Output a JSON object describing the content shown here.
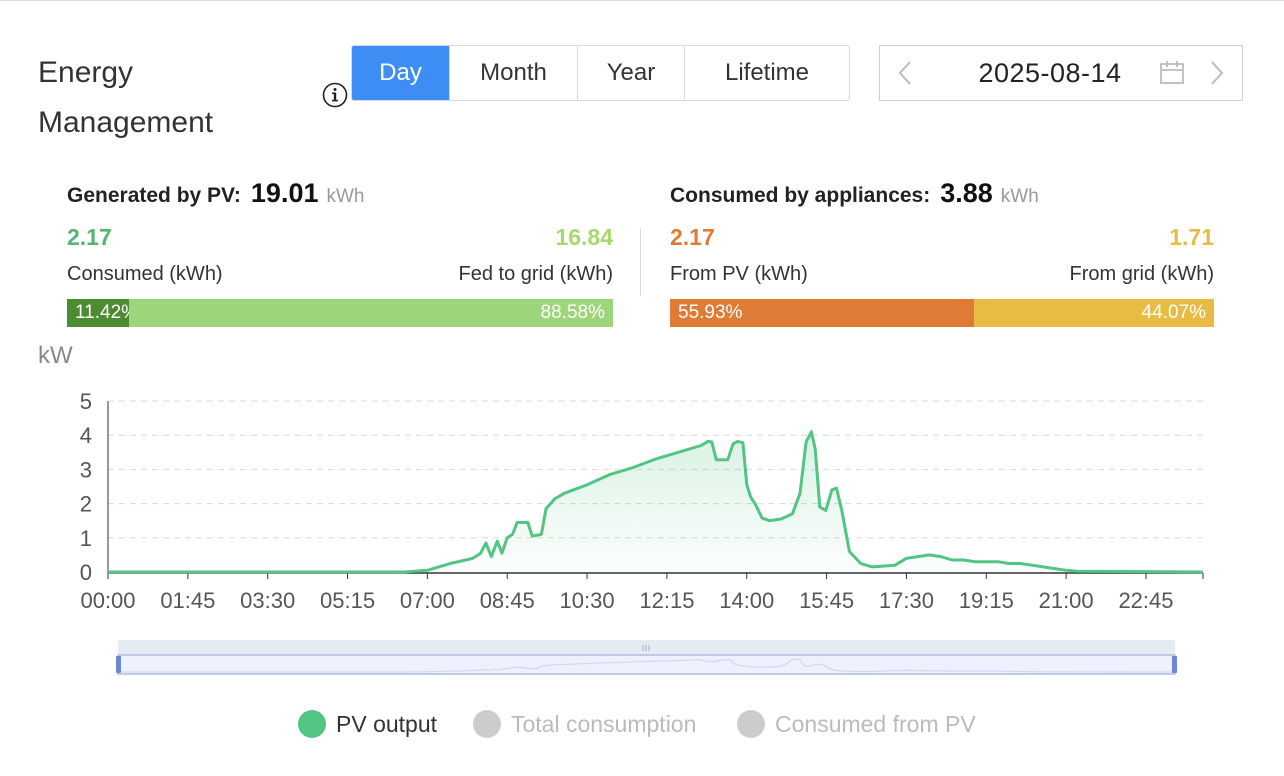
{
  "header": {
    "title_line1": "Energy",
    "title_line2": "Management"
  },
  "tabs": [
    {
      "label": "Day",
      "active": true
    },
    {
      "label": "Month",
      "active": false
    },
    {
      "label": "Year",
      "active": false
    },
    {
      "label": "Lifetime",
      "active": false
    }
  ],
  "date_picker": {
    "value": "2025-08-14",
    "prev_icon": "chevron-left-icon",
    "next_icon": "chevron-right-icon",
    "calendar_icon": "calendar-icon"
  },
  "generated": {
    "label": "Generated by PV:",
    "total": "19.01",
    "unit": "kWh",
    "left_value": "2.17",
    "right_value": "16.84",
    "left_label": "Consumed (kWh)",
    "right_label": "Fed to grid (kWh)",
    "left_pct": "11.42%",
    "right_pct": "88.58%",
    "left_fraction": 0.1142,
    "colors": {
      "left_value": "#55b472",
      "right_value": "#a6d96a",
      "left_bar": "#4d8b30",
      "right_bar": "#9dd67a"
    }
  },
  "consumed": {
    "label": "Consumed by appliances:",
    "total": "3.88",
    "unit": "kWh",
    "left_value": "2.17",
    "right_value": "1.71",
    "left_label": "From PV (kWh)",
    "right_label": "From grid (kWh)",
    "left_pct": "55.93%",
    "right_pct": "44.07%",
    "left_fraction": 0.5593,
    "colors": {
      "left_value": "#e07b35",
      "right_value": "#e8bb3c",
      "left_bar": "#e07b35",
      "right_bar": "#e8bb42"
    }
  },
  "chart_data": {
    "type": "area",
    "ylabel": "kW",
    "ylim": [
      0,
      5
    ],
    "yticks": [
      "0",
      "1",
      "2",
      "3",
      "4",
      "5"
    ],
    "xticks": [
      "00:00",
      "01:45",
      "03:30",
      "05:15",
      "07:00",
      "08:45",
      "10:30",
      "12:15",
      "14:00",
      "15:45",
      "17:30",
      "19:15",
      "21:00",
      "22:45"
    ],
    "x_range_hours": [
      0,
      24
    ],
    "grid": "horizontal dashed",
    "series": [
      {
        "name": "PV output",
        "color": "#52c483",
        "points": [
          [
            "00:00",
            0
          ],
          [
            "06:30",
            0
          ],
          [
            "07:00",
            0.05
          ],
          [
            "07:30",
            0.25
          ],
          [
            "08:00",
            0.4
          ],
          [
            "08:10",
            0.55
          ],
          [
            "08:17",
            0.85
          ],
          [
            "08:24",
            0.45
          ],
          [
            "08:32",
            0.9
          ],
          [
            "08:38",
            0.55
          ],
          [
            "08:45",
            1.0
          ],
          [
            "08:52",
            1.1
          ],
          [
            "08:58",
            1.45
          ],
          [
            "09:12",
            1.45
          ],
          [
            "09:18",
            1.05
          ],
          [
            "09:30",
            1.1
          ],
          [
            "09:36",
            1.85
          ],
          [
            "09:48",
            2.15
          ],
          [
            "10:00",
            2.3
          ],
          [
            "10:30",
            2.55
          ],
          [
            "11:00",
            2.85
          ],
          [
            "11:30",
            3.05
          ],
          [
            "12:00",
            3.3
          ],
          [
            "12:30",
            3.5
          ],
          [
            "13:00",
            3.7
          ],
          [
            "13:09",
            3.82
          ],
          [
            "13:14",
            3.8
          ],
          [
            "13:20",
            3.28
          ],
          [
            "13:35",
            3.28
          ],
          [
            "13:42",
            3.75
          ],
          [
            "13:48",
            3.82
          ],
          [
            "13:55",
            3.78
          ],
          [
            "14:00",
            2.55
          ],
          [
            "14:05",
            2.2
          ],
          [
            "14:12",
            1.95
          ],
          [
            "14:20",
            1.58
          ],
          [
            "14:30",
            1.5
          ],
          [
            "14:45",
            1.55
          ],
          [
            "15:00",
            1.7
          ],
          [
            "15:10",
            2.3
          ],
          [
            "15:18",
            3.8
          ],
          [
            "15:25",
            4.1
          ],
          [
            "15:30",
            3.6
          ],
          [
            "15:36",
            1.9
          ],
          [
            "15:44",
            1.8
          ],
          [
            "15:52",
            2.4
          ],
          [
            "15:58",
            2.45
          ],
          [
            "16:05",
            1.8
          ],
          [
            "16:15",
            0.6
          ],
          [
            "16:30",
            0.25
          ],
          [
            "16:45",
            0.15
          ],
          [
            "17:15",
            0.2
          ],
          [
            "17:30",
            0.4
          ],
          [
            "17:45",
            0.45
          ],
          [
            "18:00",
            0.5
          ],
          [
            "18:15",
            0.45
          ],
          [
            "18:30",
            0.35
          ],
          [
            "18:45",
            0.35
          ],
          [
            "19:00",
            0.3
          ],
          [
            "19:15",
            0.3
          ],
          [
            "19:30",
            0.3
          ],
          [
            "19:45",
            0.25
          ],
          [
            "20:00",
            0.25
          ],
          [
            "20:15",
            0.2
          ],
          [
            "20:30",
            0.15
          ],
          [
            "20:45",
            0.1
          ],
          [
            "21:00",
            0.05
          ],
          [
            "21:15",
            0.02
          ],
          [
            "24:00",
            0
          ]
        ]
      },
      {
        "name": "Total consumption",
        "color": "#cccccc",
        "hidden": true
      },
      {
        "name": "Consumed from PV",
        "color": "#cccccc",
        "hidden": true
      }
    ]
  },
  "legend": [
    {
      "label": "PV output",
      "color": "#52c483",
      "text_color": "#333333"
    },
    {
      "label": "Total consumption",
      "color": "#cccccc",
      "text_color": "#bbbbbb"
    },
    {
      "label": "Consumed from PV",
      "color": "#cccccc",
      "text_color": "#bbbbbb"
    }
  ],
  "icons": {
    "info": "info-icon"
  }
}
